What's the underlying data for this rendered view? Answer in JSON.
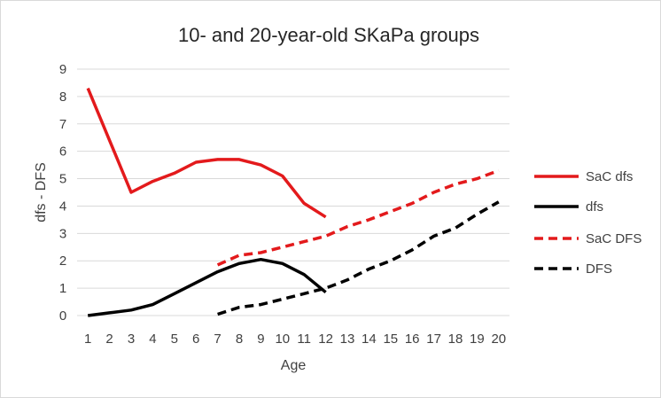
{
  "chart_data": {
    "type": "line",
    "title": "10- and 20-year-old SKaPa groups",
    "xlabel": "Age",
    "ylabel": "dfs - DFS",
    "x": [
      1,
      2,
      3,
      4,
      5,
      6,
      7,
      8,
      9,
      10,
      11,
      12,
      13,
      14,
      15,
      16,
      17,
      18,
      19,
      20
    ],
    "ylim": [
      0,
      9
    ],
    "yticks": [
      0,
      1,
      2,
      3,
      4,
      5,
      6,
      7,
      8,
      9
    ],
    "grid": "horizontal",
    "legend_position": "right",
    "series": [
      {
        "name": "SaC dfs",
        "color": "#e31a1c",
        "dash": "solid",
        "points": [
          [
            1,
            8.3
          ],
          [
            2,
            6.4
          ],
          [
            3,
            4.5
          ],
          [
            4,
            4.9
          ],
          [
            5,
            5.2
          ],
          [
            6,
            5.6
          ],
          [
            7,
            5.7
          ],
          [
            8,
            5.7
          ],
          [
            9,
            5.5
          ],
          [
            10,
            5.1
          ],
          [
            11,
            4.1
          ],
          [
            12,
            3.6
          ]
        ]
      },
      {
        "name": "dfs",
        "color": "#000000",
        "dash": "solid",
        "points": [
          [
            1,
            0.0
          ],
          [
            2,
            0.1
          ],
          [
            3,
            0.2
          ],
          [
            4,
            0.4
          ],
          [
            5,
            0.8
          ],
          [
            6,
            1.2
          ],
          [
            7,
            1.6
          ],
          [
            8,
            1.9
          ],
          [
            9,
            2.05
          ],
          [
            10,
            1.9
          ],
          [
            11,
            1.5
          ],
          [
            12,
            0.85
          ]
        ]
      },
      {
        "name": "SaC DFS",
        "color": "#e31a1c",
        "dash": "dashed",
        "points": [
          [
            7,
            1.85
          ],
          [
            8,
            2.2
          ],
          [
            9,
            2.3
          ],
          [
            10,
            2.5
          ],
          [
            11,
            2.7
          ],
          [
            12,
            2.9
          ],
          [
            13,
            3.25
          ],
          [
            14,
            3.5
          ],
          [
            15,
            3.8
          ],
          [
            16,
            4.1
          ],
          [
            17,
            4.5
          ],
          [
            18,
            4.8
          ],
          [
            19,
            5.0
          ],
          [
            20,
            5.3
          ]
        ]
      },
      {
        "name": "DFS",
        "color": "#000000",
        "dash": "dashed",
        "points": [
          [
            7,
            0.05
          ],
          [
            8,
            0.3
          ],
          [
            9,
            0.4
          ],
          [
            10,
            0.6
          ],
          [
            11,
            0.8
          ],
          [
            12,
            1.0
          ],
          [
            13,
            1.3
          ],
          [
            14,
            1.7
          ],
          [
            15,
            2.0
          ],
          [
            16,
            2.4
          ],
          [
            17,
            2.9
          ],
          [
            18,
            3.2
          ],
          [
            19,
            3.7
          ],
          [
            20,
            4.15
          ]
        ]
      }
    ]
  }
}
